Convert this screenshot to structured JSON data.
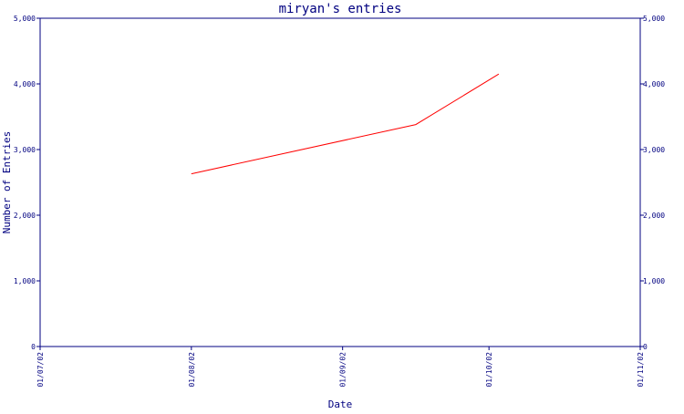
{
  "chart_data": {
    "type": "line",
    "title": "miryan's entries",
    "xlabel": "Date",
    "ylabel": "Number of Entries",
    "x_ticks": [
      "01/07/02",
      "01/08/02",
      "01/09/02",
      "01/10/02",
      "01/11/02"
    ],
    "y_ticks": [
      0,
      1000,
      2000,
      3000,
      4000,
      5000
    ],
    "y_tick_labels": [
      "0",
      "1,000",
      "2,000",
      "3,000",
      "4,000",
      "5,000"
    ],
    "xlim": [
      "2002-07-01",
      "2002-11-01"
    ],
    "ylim": [
      0,
      5000
    ],
    "grid": false,
    "legend": "none",
    "series": [
      {
        "x": [
          "2002-08-01",
          "2002-09-16",
          "2002-10-03"
        ],
        "y": [
          2630,
          3380,
          4150
        ]
      }
    ],
    "colors": {
      "axis": "#000080",
      "title": "#000080",
      "line": "#ff0000",
      "background": "#ffffff"
    }
  }
}
